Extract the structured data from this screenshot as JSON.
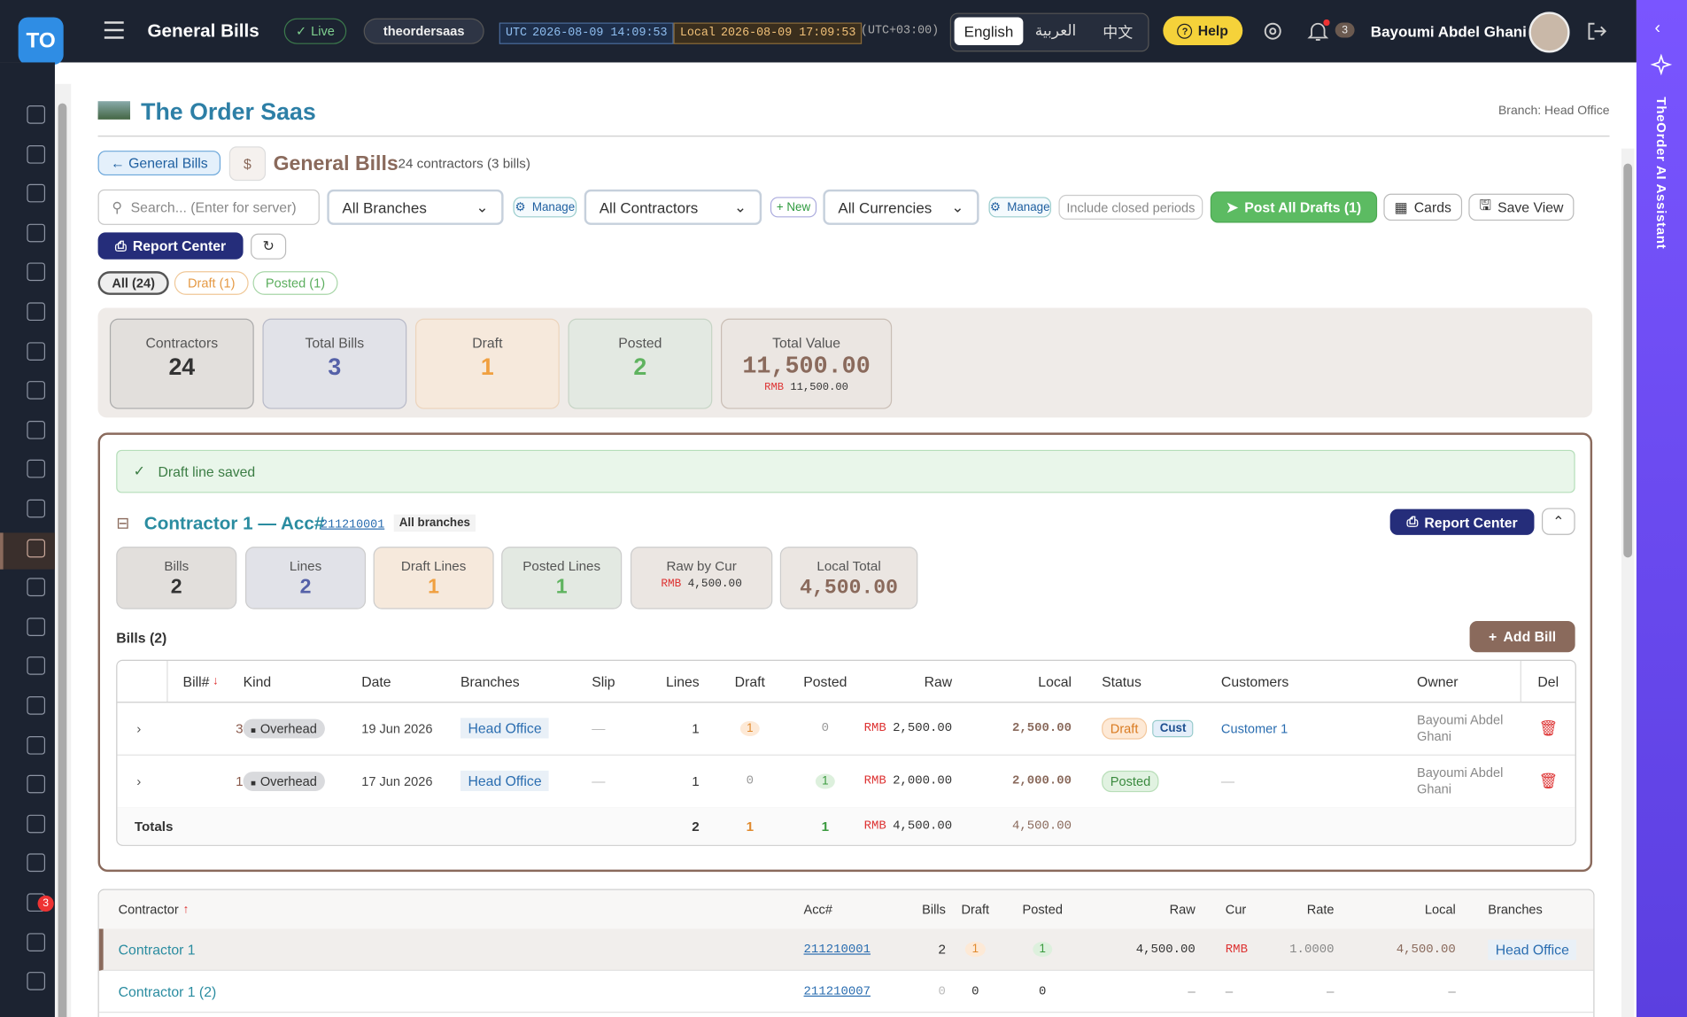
{
  "topbar": {
    "logo": "TO",
    "title": "General Bills",
    "live": "Live",
    "tenant": "theordersaas",
    "utc_label": "UTC",
    "utc_time": "2026-08-09 14:09:53",
    "local_label": "Local",
    "local_time": "2026-08-09 17:09:53",
    "tz": "(UTC+03:00)",
    "languages": [
      "English",
      "العربية",
      "中文"
    ],
    "help": "Help",
    "notifications": "3",
    "user": "Bayoumi Abdel Ghani"
  },
  "sidebar_badge": "3",
  "ai_panel": "TheOrder AI Assistant",
  "header": {
    "company": "The Order Saas",
    "branch": "Branch: Head Office"
  },
  "toolbar": {
    "back": "← General Bills",
    "title": "General Bills",
    "summary": "24 contractors (3 bills)",
    "search": "Search... (Enter for server)",
    "branches": "All Branches",
    "manage_branches": "Manage",
    "contractors": "All Contractors",
    "new": "+ New",
    "currencies": "All Currencies",
    "manage_currencies": "Manage",
    "include_closed": "Include closed periods",
    "post_all": "Post All Drafts (1)",
    "cards": "Cards",
    "save_view": "Save View",
    "report_center": "Report Center"
  },
  "filters": [
    "All (24)",
    "Draft (1)",
    "Posted (1)"
  ],
  "stats": [
    {
      "label": "Contractors",
      "value": "24"
    },
    {
      "label": "Total Bills",
      "value": "3"
    },
    {
      "label": "Draft",
      "value": "1"
    },
    {
      "label": "Posted",
      "value": "2"
    },
    {
      "label": "Total Value",
      "value": "11,500.00",
      "currency": "RMB",
      "sub": "11,500.00"
    }
  ],
  "panel": {
    "alert": "Draft line saved",
    "contractor": "Contractor 1 — Acc#",
    "account": "211210001",
    "scope": "All branches",
    "report_center": "Report Center",
    "stats": [
      {
        "label": "Bills",
        "value": "2"
      },
      {
        "label": "Lines",
        "value": "2"
      },
      {
        "label": "Draft Lines",
        "value": "1"
      },
      {
        "label": "Posted Lines",
        "value": "1"
      },
      {
        "label": "Raw by Cur",
        "currency": "RMB",
        "value": "4,500.00"
      },
      {
        "label": "Local Total",
        "value": "4,500.00"
      }
    ],
    "bills_title": "Bills (2)",
    "add_bill": "Add Bill",
    "columns": [
      "Bill#",
      "Kind",
      "Date",
      "Branches",
      "Slip",
      "Lines",
      "Draft",
      "Posted",
      "Raw",
      "Local",
      "Status",
      "Customers",
      "Owner",
      "Del"
    ],
    "rows": [
      {
        "bill": "3",
        "kind": "Overhead",
        "date": "19 Jun 2026",
        "branch": "Head Office",
        "slip": "—",
        "lines": "1",
        "draft": "1",
        "posted": "0",
        "currency": "RMB",
        "raw": "2,500.00",
        "local": "2,500.00",
        "status": "Draft",
        "tag": "Cust",
        "customer": "Customer 1",
        "owner": "Bayoumi Abdel Ghani"
      },
      {
        "bill": "1",
        "kind": "Overhead",
        "date": "17 Jun 2026",
        "branch": "Head Office",
        "slip": "—",
        "lines": "1",
        "draft": "0",
        "posted": "1",
        "currency": "RMB",
        "raw": "2,000.00",
        "local": "2,000.00",
        "status": "Posted",
        "customer": "—",
        "owner": "Bayoumi Abdel Ghani"
      }
    ],
    "totals": {
      "label": "Totals",
      "lines": "2",
      "draft": "1",
      "posted": "1",
      "currency": "RMB",
      "raw": "4,500.00",
      "local": "4,500.00"
    }
  },
  "contractors": {
    "columns": [
      "Contractor",
      "Acc#",
      "Bills",
      "Draft",
      "Posted",
      "Raw",
      "Cur",
      "Rate",
      "Local",
      "Branches"
    ],
    "rows": [
      {
        "name": "Contractor 1",
        "account": "211210001",
        "bills": "2",
        "draft": "1",
        "posted": "1",
        "raw": "4,500.00",
        "currency": "RMB",
        "rate": "1.0000",
        "local": "4,500.00",
        "branch": "Head Office"
      },
      {
        "name": "Contractor 1 (2)",
        "account": "211210007",
        "bills": "0",
        "draft": "0",
        "posted": "0",
        "raw": "–",
        "currency": "–",
        "rate": "–",
        "local": "–"
      }
    ]
  }
}
